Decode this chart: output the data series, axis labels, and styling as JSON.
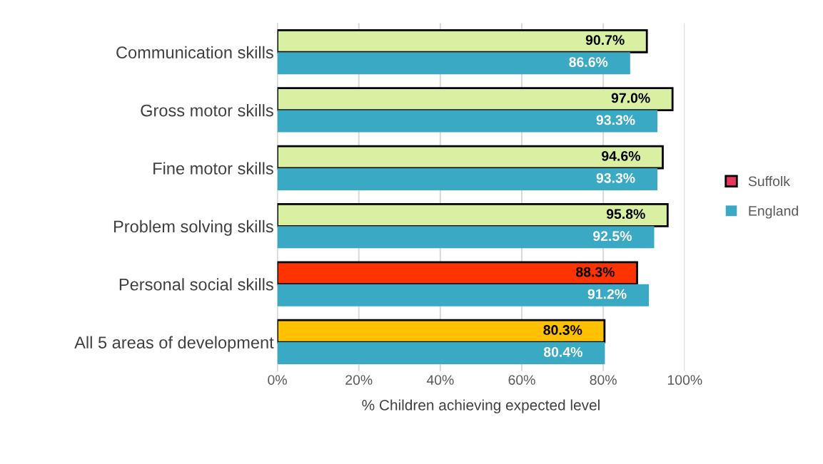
{
  "chart_data": {
    "type": "bar",
    "orientation": "horizontal",
    "xlabel": "% Children achieving expected level",
    "categories": [
      "Communication skills",
      "Gross motor skills",
      "Fine motor skills",
      "Problem solving skills",
      "Personal social skills",
      "All 5 areas of development"
    ],
    "series": [
      {
        "name": "Suffolk",
        "color": "#e8365e",
        "colors": [
          "#d9f0a3",
          "#d9f0a3",
          "#d9f0a3",
          "#d9f0a3",
          "#ff3300",
          "#ffc000"
        ],
        "values": [
          90.7,
          97.0,
          94.6,
          95.8,
          88.3,
          80.3
        ],
        "value_labels": [
          "90.7%",
          "97.0%",
          "94.6%",
          "95.8%",
          "88.3%",
          "80.3%"
        ]
      },
      {
        "name": "England",
        "color": "#3aa9c4",
        "values": [
          86.6,
          93.3,
          93.3,
          92.5,
          91.2,
          80.4
        ],
        "value_labels": [
          "86.6%",
          "93.3%",
          "93.3%",
          "92.5%",
          "91.2%",
          "80.4%"
        ]
      }
    ],
    "xlim": [
      0,
      100
    ],
    "xticks": [
      {
        "value": 0,
        "label": "0%"
      },
      {
        "value": 20,
        "label": "20%"
      },
      {
        "value": 40,
        "label": "40%"
      },
      {
        "value": 60,
        "label": "60%"
      },
      {
        "value": 80,
        "label": "80%"
      },
      {
        "value": 100,
        "label": "100%"
      }
    ],
    "grid": "x",
    "legend": "right"
  }
}
